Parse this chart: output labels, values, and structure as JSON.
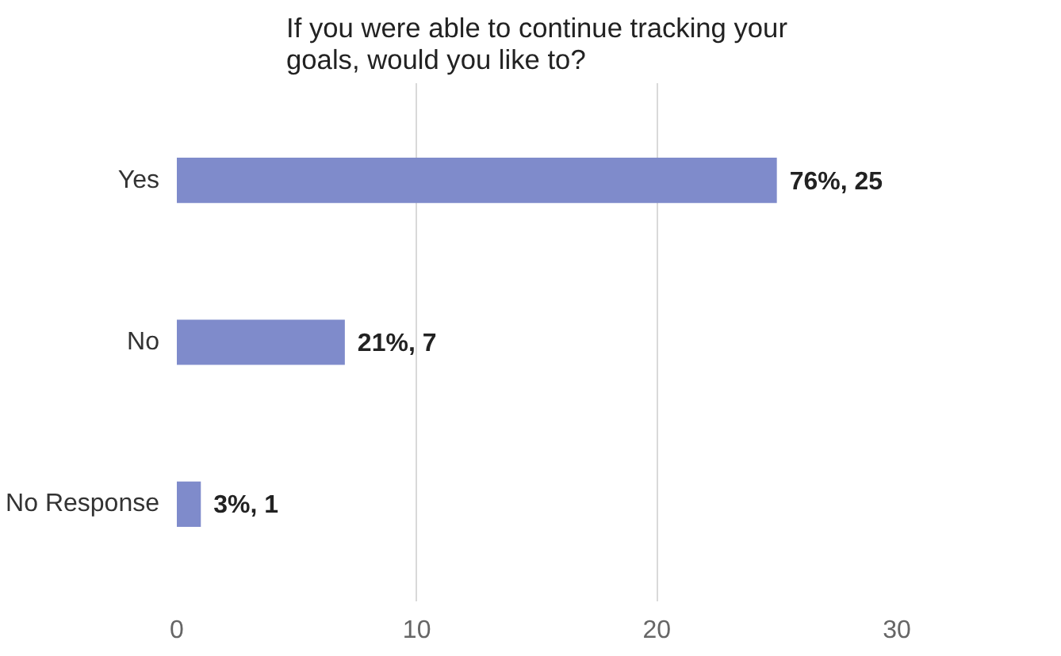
{
  "chart_data": {
    "type": "bar",
    "orientation": "horizontal",
    "title": "If you were able to continue tracking your goals, would you like to?",
    "categories": [
      "Yes",
      "No",
      "No Response"
    ],
    "values": [
      25,
      7,
      1
    ],
    "value_labels": [
      "76%, 25",
      "21%, 7",
      "3%, 1"
    ],
    "color": "#7f8bcb",
    "xlim": [
      0,
      30
    ],
    "xticks": [
      0,
      10,
      20,
      30
    ],
    "grid": "x"
  }
}
